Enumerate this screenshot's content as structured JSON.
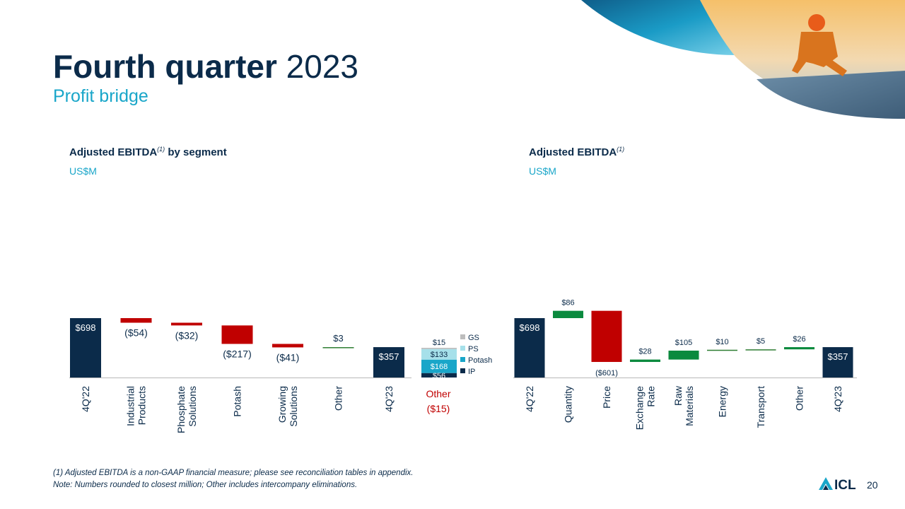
{
  "slide": {
    "title_bold": "Fourth quarter",
    "title_light": "2023",
    "subtitle": "Profit bridge",
    "page_number": "20",
    "brand": "ICL",
    "footnote_1": "(1) Adjusted EBITDA is a non-GAAP financial measure; please see reconciliation tables in appendix.",
    "footnote_2": "Note: Numbers rounded to closest million; Other includes intercompany eliminations."
  },
  "colors": {
    "navy": "#0b2b4a",
    "accent": "#19a6c9",
    "negative": "#c00000",
    "positive": "#0b8a3e",
    "neutral_line": "#2e7d32"
  },
  "chart_data": [
    {
      "type": "bar",
      "subtype": "waterfall",
      "title": "Adjusted EBITDA",
      "title_sup": "(1)",
      "title_suffix": " by segment",
      "unit": "US$M",
      "ylim": [
        0,
        698
      ],
      "categories": [
        "4Q'22",
        "Industrial Products",
        "Phosphate Solutions",
        "Potash",
        "Growing Solutions",
        "Other",
        "4Q'23"
      ],
      "steps": [
        {
          "category": "4Q'22",
          "kind": "total",
          "value": 698,
          "label": "$698"
        },
        {
          "category": "Industrial Products",
          "kind": "delta",
          "value": -54,
          "label": "($54)"
        },
        {
          "category": "Phosphate Solutions",
          "kind": "delta",
          "value": -32,
          "label": "($32)"
        },
        {
          "category": "Potash",
          "kind": "delta",
          "value": -217,
          "label": "($217)"
        },
        {
          "category": "Growing Solutions",
          "kind": "delta",
          "value": -41,
          "label": "($41)"
        },
        {
          "category": "Other",
          "kind": "delta",
          "value": 3,
          "label": "$3"
        },
        {
          "category": "4Q'23",
          "kind": "total",
          "value": 357,
          "label": "$357"
        }
      ],
      "breakdown": {
        "category": "Other",
        "total_label": "($15)",
        "series": [
          {
            "name": "IP",
            "value": 56,
            "label": "$56",
            "color": "#0b2b4a"
          },
          {
            "name": "Potash",
            "value": 168,
            "label": "$168",
            "color": "#19a6c9"
          },
          {
            "name": "PS",
            "value": 133,
            "label": "$133",
            "color": "#a6e0ea"
          },
          {
            "name": "GS",
            "value": 15,
            "label": "$15",
            "color": "#bdbdbd"
          }
        ],
        "legend_order": [
          "GS",
          "PS",
          "Potash",
          "IP"
        ]
      }
    },
    {
      "type": "bar",
      "subtype": "waterfall",
      "title": "Adjusted EBITDA",
      "title_sup": "(1)",
      "title_suffix": "",
      "unit": "US$M",
      "ylim": [
        0,
        698
      ],
      "categories": [
        "4Q'22",
        "Quantity",
        "Price",
        "Exchange Rate",
        "Raw Materials",
        "Energy",
        "Transport",
        "Other",
        "4Q'23"
      ],
      "steps": [
        {
          "category": "4Q'22",
          "kind": "total",
          "value": 698,
          "label": "$698"
        },
        {
          "category": "Quantity",
          "kind": "delta",
          "value": 86,
          "label": "$86"
        },
        {
          "category": "Price",
          "kind": "delta",
          "value": -601,
          "label": "($601)"
        },
        {
          "category": "Exchange Rate",
          "kind": "delta",
          "value": 28,
          "label": "$28"
        },
        {
          "category": "Raw Materials",
          "kind": "delta",
          "value": 105,
          "label": "$105"
        },
        {
          "category": "Energy",
          "kind": "delta",
          "value": 10,
          "label": "$10"
        },
        {
          "category": "Transport",
          "kind": "delta",
          "value": 5,
          "label": "$5"
        },
        {
          "category": "Other",
          "kind": "delta",
          "value": 26,
          "label": "$26"
        },
        {
          "category": "4Q'23",
          "kind": "total",
          "value": 357,
          "label": "$357"
        }
      ]
    }
  ]
}
